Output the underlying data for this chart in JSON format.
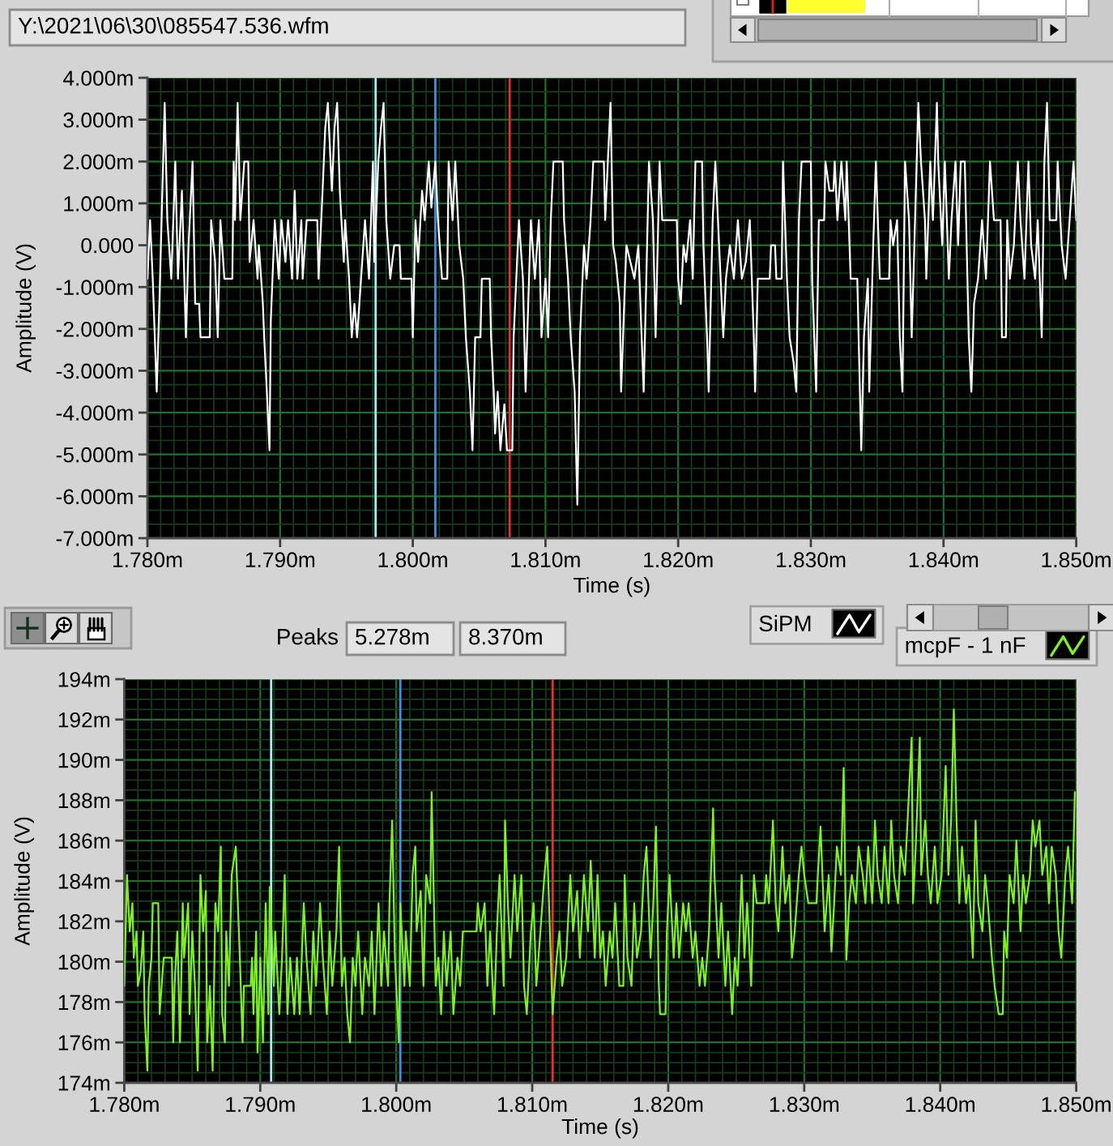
{
  "chart_data": [
    {
      "type": "line",
      "annotations": [
        "Y:\\2021\\06\\30\\085547.536.wfm"
      ],
      "xlabel": "Time (s)",
      "ylabel": "Amplitude (V)",
      "x": [
        1.78,
        1.7802,
        1.7804,
        1.7807,
        1.7809,
        1.7811,
        1.7813,
        1.7815,
        1.7818,
        1.7821,
        1.7823,
        1.7826,
        1.7829,
        1.7831,
        1.7834,
        1.7836,
        1.7839,
        1.784,
        1.7847,
        1.7848,
        1.7851,
        1.7853,
        1.7855,
        1.7858,
        1.7864,
        1.7865,
        1.7866,
        1.7868,
        1.787,
        1.7873,
        1.7876,
        1.7877,
        1.788,
        1.7883,
        1.7884,
        1.7887,
        1.7888,
        1.789,
        1.7892,
        1.7893,
        1.7896,
        1.7899,
        1.7901,
        1.7904,
        1.7906,
        1.7909,
        1.7911,
        1.7913,
        1.7916,
        1.7917,
        1.792,
        1.7928,
        1.7929,
        1.7932,
        1.7934,
        1.7936,
        1.7939,
        1.7941,
        1.7943,
        1.7945,
        1.7948,
        1.7949,
        1.7952,
        1.7954,
        1.7956,
        1.7958,
        1.7961,
        1.7964,
        1.7967,
        1.797,
        1.7971,
        1.7974,
        1.7976,
        1.7978,
        1.798,
        1.7983,
        1.7986,
        1.799,
        1.7991,
        1.7999,
        1.8,
        1.8002,
        1.8004,
        1.8007,
        1.8009,
        1.8012,
        1.8014,
        1.8017,
        1.8019,
        1.8022,
        1.8026,
        1.8027,
        1.803,
        1.8032,
        1.8035,
        1.8038,
        1.804,
        1.8043,
        1.8045,
        1.8047,
        1.8051,
        1.8052,
        1.8058,
        1.8059,
        1.8061,
        1.8062,
        1.8064,
        1.8066,
        1.8069,
        1.8071,
        1.8075,
        1.8076,
        1.8078,
        1.808,
        1.8083,
        1.8085,
        1.8087,
        1.8089,
        1.8092,
        1.8095,
        1.8097,
        1.81,
        1.8102,
        1.8104,
        1.8106,
        1.8113,
        1.8114,
        1.8117,
        1.8119,
        1.8122,
        1.8124,
        1.8126,
        1.8129,
        1.8131,
        1.8134,
        1.8136,
        1.8144,
        1.8145,
        1.8147,
        1.8149,
        1.8151,
        1.8153,
        1.8156,
        1.8157,
        1.816,
        1.8161,
        1.8164,
        1.8167,
        1.817,
        1.8172,
        1.8174,
        1.8176,
        1.8178,
        1.8181,
        1.8183,
        1.8186,
        1.8188,
        1.8199,
        1.82,
        1.8202,
        1.8204,
        1.8206,
        1.8209,
        1.8211,
        1.8213,
        1.8218,
        1.8219,
        1.8222,
        1.8223,
        1.8226,
        1.8228,
        1.823,
        1.8234,
        1.8236,
        1.8239,
        1.8242,
        1.8245,
        1.8248,
        1.8251,
        1.8254,
        1.8257,
        1.8258,
        1.826,
        1.8269,
        1.827,
        1.8273,
        1.8274,
        1.8278,
        1.8279,
        1.8282,
        1.8284,
        1.8287,
        1.8289,
        1.8291,
        1.8293,
        1.83,
        1.8301,
        1.8304,
        1.8306,
        1.831,
        1.8311,
        1.8314,
        1.8317,
        1.8318,
        1.832,
        1.8323,
        1.8326,
        1.8327,
        1.833,
        1.8335,
        1.8336,
        1.8338,
        1.834,
        1.8343,
        1.8344,
        1.8347,
        1.8349,
        1.8352,
        1.8359,
        1.836,
        1.8362,
        1.8365,
        1.8367,
        1.8369,
        1.8371,
        1.8374,
        1.8376,
        1.8378,
        1.8381,
        1.8383,
        1.8386,
        1.8387,
        1.839,
        1.8392,
        1.8395,
        1.8396,
        1.8399,
        1.8401,
        1.8404,
        1.8406,
        1.8409,
        1.8411,
        1.8413,
        1.8416,
        1.8417,
        1.8419,
        1.8421,
        1.8423,
        1.8426,
        1.8429,
        1.8432,
        1.8435,
        1.8438,
        1.8443,
        1.8444,
        1.8447,
        1.8448,
        1.845,
        1.8453,
        1.8456,
        1.8458,
        1.8461,
        1.8464,
        1.8466,
        1.8469,
        1.8471,
        1.8474,
        1.8476,
        1.8478,
        1.848,
        1.8485,
        1.8486,
        1.8489,
        1.8492,
        1.8495,
        1.8498,
        1.85
      ],
      "series": [
        {
          "name": "SiPM",
          "color": "#ffffff",
          "values": [
            -0.8,
            0.6,
            -0.8,
            -3.5,
            -1.4,
            1.0,
            3.4,
            0.6,
            -0.8,
            2.0,
            -0.8,
            1.3,
            -2.2,
            0.0,
            2.0,
            -1.4,
            -1.4,
            -2.2,
            -2.2,
            0.6,
            -0.4,
            -2.2,
            0.6,
            -0.8,
            -0.8,
            2.0,
            0.6,
            3.4,
            0.6,
            2.0,
            2.0,
            -0.4,
            0.6,
            -0.8,
            0.0,
            -1.4,
            -2.2,
            -3.5,
            -4.9,
            -1.8,
            0.6,
            -0.8,
            0.6,
            -0.4,
            0.6,
            -0.8,
            1.3,
            -0.8,
            0.6,
            -0.8,
            0.6,
            0.6,
            -0.8,
            1.3,
            2.8,
            3.4,
            1.3,
            2.8,
            3.4,
            1.3,
            -0.4,
            0.6,
            -0.8,
            -2.2,
            -1.4,
            -2.2,
            -0.8,
            0.6,
            -0.8,
            2.0,
            -0.4,
            2.0,
            2.8,
            3.4,
            0.6,
            -0.8,
            0.0,
            0.0,
            -0.8,
            -0.8,
            -2.2,
            0.6,
            -0.4,
            1.3,
            0.6,
            2.0,
            0.9,
            2.0,
            0.6,
            -0.8,
            -0.8,
            2.0,
            0.6,
            2.0,
            0.0,
            -0.8,
            -2.2,
            -3.5,
            -4.9,
            -2.2,
            -2.2,
            -0.8,
            -0.8,
            -2.2,
            -3.5,
            -4.5,
            -3.5,
            -4.9,
            -3.8,
            -4.9,
            -4.9,
            -2.2,
            -0.8,
            0.6,
            -0.8,
            -3.5,
            -1.4,
            0.6,
            -0.8,
            0.6,
            -2.2,
            -0.8,
            -2.2,
            0.6,
            2.0,
            2.0,
            0.6,
            -0.8,
            -2.2,
            -3.5,
            -6.2,
            -2.2,
            0.0,
            -0.8,
            0.6,
            2.0,
            2.0,
            0.6,
            2.0,
            3.4,
            0.0,
            -0.4,
            -1.4,
            -3.5,
            -0.8,
            0.0,
            -0.4,
            -0.8,
            0.0,
            -1.8,
            -3.5,
            -0.8,
            2.0,
            0.6,
            -2.2,
            2.0,
            0.6,
            0.6,
            -0.8,
            -1.4,
            0.0,
            -0.4,
            0.6,
            -0.8,
            2.0,
            2.0,
            0.0,
            -2.4,
            -3.5,
            0.6,
            2.0,
            0.6,
            -2.2,
            -0.8,
            0.0,
            -0.8,
            0.6,
            -0.8,
            -0.4,
            0.6,
            -2.2,
            -3.5,
            -0.8,
            -0.8,
            0.0,
            0.0,
            -0.8,
            -0.8,
            2.0,
            -0.8,
            -2.2,
            -2.8,
            -3.5,
            0.6,
            2.0,
            2.0,
            -0.8,
            -3.5,
            0.6,
            0.6,
            2.0,
            1.3,
            1.3,
            2.0,
            0.6,
            2.0,
            0.6,
            2.0,
            -0.8,
            -0.8,
            -2.2,
            -4.9,
            -2.2,
            -0.8,
            -3.5,
            0.0,
            2.0,
            -0.8,
            -0.8,
            0.6,
            0.0,
            0.6,
            -2.2,
            -3.5,
            2.0,
            0.6,
            -2.2,
            0.0,
            3.4,
            2.0,
            0.6,
            -0.8,
            2.0,
            0.6,
            3.4,
            2.0,
            0.0,
            2.0,
            -0.8,
            0.6,
            2.0,
            0.0,
            2.0,
            2.0,
            0.6,
            -2.2,
            -3.5,
            -1.4,
            -0.8,
            0.6,
            -0.8,
            2.0,
            0.6,
            0.6,
            -2.2,
            -2.2,
            0.6,
            -0.8,
            0.0,
            2.0,
            0.6,
            -0.8,
            2.0,
            0.0,
            -0.8,
            0.6,
            -2.2,
            2.0,
            3.4,
            0.6,
            0.6,
            2.0,
            0.0,
            -0.8,
            0.6,
            2.0,
            0.6
          ]
        }
      ],
      "xlim": [
        1.78,
        1.85
      ],
      "xticks": [
        {
          "value": 1.78,
          "label": "1.780m"
        },
        {
          "value": 1.781,
          "label": null
        },
        {
          "value": 1.782,
          "label": null
        },
        {
          "value": 1.783,
          "label": null
        },
        {
          "value": 1.784,
          "label": null
        },
        {
          "value": 1.785,
          "label": null
        },
        {
          "value": 1.786,
          "label": null
        },
        {
          "value": 1.787,
          "label": null
        },
        {
          "value": 1.788,
          "label": null
        },
        {
          "value": 1.789,
          "label": null
        },
        {
          "value": 1.79,
          "label": "1.790m"
        },
        {
          "value": 1.791,
          "label": null
        },
        {
          "value": 1.792,
          "label": null
        },
        {
          "value": 1.793,
          "label": null
        },
        {
          "value": 1.794,
          "label": null
        },
        {
          "value": 1.795,
          "label": null
        },
        {
          "value": 1.796,
          "label": null
        },
        {
          "value": 1.797,
          "label": null
        },
        {
          "value": 1.798,
          "label": null
        },
        {
          "value": 1.799,
          "label": null
        },
        {
          "value": 1.8,
          "label": "1.800m"
        },
        {
          "value": 1.801,
          "label": null
        },
        {
          "value": 1.802,
          "label": null
        },
        {
          "value": 1.803,
          "label": null
        },
        {
          "value": 1.804,
          "label": null
        },
        {
          "value": 1.805,
          "label": null
        },
        {
          "value": 1.806,
          "label": null
        },
        {
          "value": 1.807,
          "label": null
        },
        {
          "value": 1.808,
          "label": null
        },
        {
          "value": 1.809,
          "label": null
        },
        {
          "value": 1.81,
          "label": "1.810m"
        },
        {
          "value": 1.811,
          "label": null
        },
        {
          "value": 1.812,
          "label": null
        },
        {
          "value": 1.813,
          "label": null
        },
        {
          "value": 1.814,
          "label": null
        },
        {
          "value": 1.815,
          "label": null
        },
        {
          "value": 1.816,
          "label": null
        },
        {
          "value": 1.817,
          "label": null
        },
        {
          "value": 1.818,
          "label": null
        },
        {
          "value": 1.819,
          "label": null
        },
        {
          "value": 1.82,
          "label": "1.820m"
        },
        {
          "value": 1.821,
          "label": null
        },
        {
          "value": 1.822,
          "label": null
        },
        {
          "value": 1.823,
          "label": null
        },
        {
          "value": 1.824,
          "label": null
        },
        {
          "value": 1.825,
          "label": null
        },
        {
          "value": 1.826,
          "label": null
        },
        {
          "value": 1.827,
          "label": null
        },
        {
          "value": 1.828,
          "label": null
        },
        {
          "value": 1.829,
          "label": null
        },
        {
          "value": 1.83,
          "label": "1.830m"
        },
        {
          "value": 1.831,
          "label": null
        },
        {
          "value": 1.832,
          "label": null
        },
        {
          "value": 1.833,
          "label": null
        },
        {
          "value": 1.834,
          "label": null
        },
        {
          "value": 1.835,
          "label": null
        },
        {
          "value": 1.836,
          "label": null
        },
        {
          "value": 1.837,
          "label": null
        },
        {
          "value": 1.838,
          "label": null
        },
        {
          "value": 1.839,
          "label": null
        },
        {
          "value": 1.84,
          "label": "1.840m"
        },
        {
          "value": 1.841,
          "label": null
        },
        {
          "value": 1.842,
          "label": null
        },
        {
          "value": 1.843,
          "label": null
        },
        {
          "value": 1.844,
          "label": null
        },
        {
          "value": 1.845,
          "label": null
        },
        {
          "value": 1.846,
          "label": null
        },
        {
          "value": 1.847,
          "label": null
        },
        {
          "value": 1.848,
          "label": null
        },
        {
          "value": 1.849,
          "label": null
        },
        {
          "value": 1.85,
          "label": "1.850m"
        }
      ],
      "ylim": [
        -7,
        4
      ],
      "yticks": [
        {
          "value": -7,
          "label": "-7.000m"
        },
        {
          "value": -6.667,
          "label": null
        },
        {
          "value": -6.333,
          "label": null
        },
        {
          "value": -6,
          "label": "-6.000m"
        },
        {
          "value": -5.667,
          "label": null
        },
        {
          "value": -5.333,
          "label": null
        },
        {
          "value": -5,
          "label": "-5.000m"
        },
        {
          "value": -4.667,
          "label": null
        },
        {
          "value": -4.333,
          "label": null
        },
        {
          "value": -4,
          "label": "-4.000m"
        },
        {
          "value": -3.667,
          "label": null
        },
        {
          "value": -3.333,
          "label": null
        },
        {
          "value": -3,
          "label": "-3.000m"
        },
        {
          "value": -2.667,
          "label": null
        },
        {
          "value": -2.333,
          "label": null
        },
        {
          "value": -2,
          "label": "-2.000m"
        },
        {
          "value": -1.667,
          "label": null
        },
        {
          "value": -1.333,
          "label": null
        },
        {
          "value": -1,
          "label": "-1.000m"
        },
        {
          "value": -0.667,
          "label": null
        },
        {
          "value": -0.333,
          "label": null
        },
        {
          "value": 0,
          "label": "0.000"
        },
        {
          "value": 0.333,
          "label": null
        },
        {
          "value": 0.667,
          "label": null
        },
        {
          "value": 1,
          "label": "1.000m"
        },
        {
          "value": 1.333,
          "label": null
        },
        {
          "value": 1.667,
          "label": null
        },
        {
          "value": 2,
          "label": "2.000m"
        },
        {
          "value": 2.333,
          "label": null
        },
        {
          "value": 2.667,
          "label": null
        },
        {
          "value": 3,
          "label": "3.000m"
        },
        {
          "value": 3.333,
          "label": null
        },
        {
          "value": 3.667,
          "label": null
        },
        {
          "value": 4,
          "label": "4.000m"
        }
      ],
      "grid": true,
      "legend": "bottom right",
      "ref_lines": [
        {
          "axis": "x",
          "value": 1.7972,
          "color": "#a8ecf4"
        },
        {
          "axis": "x",
          "value": 1.8017,
          "color": "#3f8fe0"
        },
        {
          "axis": "x",
          "value": 1.8073,
          "color": "#e8302a"
        }
      ]
    },
    {
      "type": "line",
      "annotations": [
        "Peaks",
        "5.278m",
        "8.370m"
      ],
      "xlabel": "Time (s)",
      "ylabel": "Amplitude (V)",
      "x": [
        1.78,
        1.7802,
        1.7804,
        1.7806,
        1.7807,
        1.7809,
        1.781,
        1.7812,
        1.7814,
        1.7815,
        1.7817,
        1.7818,
        1.782,
        1.7821,
        1.7825,
        1.7826,
        1.7829,
        1.7835,
        1.7836,
        1.7837,
        1.7839,
        1.7841,
        1.7843,
        1.7844,
        1.7847,
        1.7848,
        1.785,
        1.7852,
        1.7854,
        1.7856,
        1.7858,
        1.786,
        1.7861,
        1.7863,
        1.7865,
        1.7867,
        1.7869,
        1.7871,
        1.7872,
        1.7874,
        1.7875,
        1.7877,
        1.7879,
        1.7882,
        1.7885,
        1.7887,
        1.7888,
        1.7893,
        1.7894,
        1.7895,
        1.7897,
        1.7898,
        1.79,
        1.7902,
        1.7904,
        1.7906,
        1.7907,
        1.791,
        1.7911,
        1.7914,
        1.7916,
        1.7918,
        1.792,
        1.7922,
        1.7925,
        1.7927,
        1.7929,
        1.7932,
        1.7934,
        1.7937,
        1.7939,
        1.7941,
        1.7944,
        1.7946,
        1.7949,
        1.7951,
        1.7953,
        1.7956,
        1.7958,
        1.796,
        1.7962,
        1.7964,
        1.7966,
        1.7968,
        1.797,
        1.7972,
        1.7975,
        1.7977,
        1.798,
        1.7982,
        1.7984,
        1.7987,
        1.7989,
        1.7991,
        1.7994,
        1.7995,
        1.7997,
        1.7999,
        1.8002,
        1.8003,
        1.8006,
        1.8007,
        1.801,
        1.8012,
        1.8014,
        1.8015,
        1.8018,
        1.802,
        1.8022,
        1.8025,
        1.8026,
        1.8029,
        1.8031,
        1.8033,
        1.8035,
        1.8037,
        1.804,
        1.8042,
        1.8045,
        1.8047,
        1.8049,
        1.8059,
        1.806,
        1.8062,
        1.8065,
        1.8067,
        1.8069,
        1.8072,
        1.8074,
        1.8076,
        1.8079,
        1.808,
        1.8082,
        1.8084,
        1.8087,
        1.8089,
        1.8092,
        1.8094,
        1.8096,
        1.8099,
        1.8101,
        1.8103,
        1.8106,
        1.8109,
        1.8111,
        1.8113,
        1.8115,
        1.8118,
        1.812,
        1.8122,
        1.8125,
        1.8128,
        1.813,
        1.8133,
        1.8135,
        1.8138,
        1.8141,
        1.8143,
        1.8146,
        1.8148,
        1.815,
        1.8152,
        1.8154,
        1.8157,
        1.8159,
        1.8161,
        1.8164,
        1.8167,
        1.8168,
        1.817,
        1.8173,
        1.8175,
        1.8177,
        1.818,
        1.8182,
        1.8184,
        1.8187,
        1.8189,
        1.8191,
        1.8193,
        1.8194,
        1.8198,
        1.8199,
        1.8201,
        1.8204,
        1.8206,
        1.8208,
        1.8211,
        1.8213,
        1.8215,
        1.8218,
        1.822,
        1.8223,
        1.8225,
        1.8227,
        1.823,
        1.8233,
        1.8234,
        1.8237,
        1.8239,
        1.8242,
        1.8244,
        1.8247,
        1.8249,
        1.8251,
        1.8254,
        1.8256,
        1.8258,
        1.8261,
        1.8263,
        1.8265,
        1.8271,
        1.8272,
        1.8274,
        1.8277,
        1.8279,
        1.8281,
        1.8284,
        1.8286,
        1.8289,
        1.8291,
        1.8293,
        1.8296,
        1.8298,
        1.83,
        1.8303,
        1.8309,
        1.831,
        1.8312,
        1.8315,
        1.8318,
        1.832,
        1.8322,
        1.8324,
        1.8327,
        1.8329,
        1.8331,
        1.8333,
        1.8335,
        1.8338,
        1.834,
        1.8343,
        1.8345,
        1.8347,
        1.835,
        1.8352,
        1.8354,
        1.8357,
        1.8359,
        1.8362,
        1.8364,
        1.8366,
        1.8369,
        1.8371,
        1.8374,
        1.8376,
        1.8379,
        1.838,
        1.8382,
        1.8385,
        1.8386,
        1.8389,
        1.8391,
        1.8393,
        1.8396,
        1.8398,
        1.8401,
        1.8404,
        1.8406,
        1.8408,
        1.841,
        1.8412,
        1.8414,
        1.8416,
        1.8419,
        1.8421,
        1.8424,
        1.8426,
        1.8428,
        1.8431,
        1.8433,
        1.8435,
        1.8438,
        1.844,
        1.8443,
        1.8446,
        1.8447,
        1.8449,
        1.8451,
        1.8454,
        1.8456,
        1.8459,
        1.8461,
        1.8463,
        1.8466,
        1.8468,
        1.847,
        1.8473,
        1.8475,
        1.8478,
        1.848,
        1.8482,
        1.8485,
        1.8487,
        1.8489,
        1.8492,
        1.8494,
        1.8497,
        1.8499
      ],
      "series": [
        {
          "name": "mcpF - 1 nF",
          "color": "#7ff21e",
          "values": [
            178.8,
            184.3,
            181.5,
            182.9,
            180.2,
            181.5,
            178.8,
            179.5,
            181.5,
            177.4,
            174.6,
            178.8,
            180.2,
            182.9,
            182.9,
            177.4,
            180.2,
            180.2,
            176.0,
            178.8,
            181.5,
            176.0,
            182.9,
            180.2,
            182.9,
            177.4,
            181.5,
            178.8,
            174.6,
            184.3,
            181.5,
            183.5,
            176.0,
            178.8,
            174.6,
            182.9,
            181.5,
            185.7,
            177.4,
            176.0,
            181.5,
            178.8,
            184.3,
            185.7,
            180.2,
            176.0,
            178.8,
            178.8,
            180.2,
            177.4,
            181.5,
            175.5,
            180.2,
            176.0,
            182.9,
            177.4,
            183.7,
            178.8,
            181.5,
            177.4,
            180.2,
            184.3,
            177.4,
            180.2,
            177.4,
            180.2,
            177.4,
            182.9,
            180.2,
            177.4,
            181.5,
            178.8,
            182.9,
            180.2,
            177.4,
            181.5,
            178.8,
            181.5,
            185.7,
            178.8,
            180.2,
            177.4,
            176.0,
            180.2,
            178.8,
            181.5,
            177.4,
            180.2,
            178.8,
            181.5,
            177.4,
            182.9,
            178.8,
            181.5,
            178.8,
            182.9,
            187.0,
            180.2,
            176.0,
            182.9,
            178.8,
            181.5,
            178.8,
            184.3,
            185.7,
            181.5,
            183.5,
            178.8,
            184.3,
            182.9,
            188.4,
            178.8,
            180.2,
            177.4,
            181.5,
            178.8,
            181.5,
            177.4,
            180.2,
            178.8,
            181.5,
            181.5,
            182.9,
            181.5,
            182.9,
            178.8,
            181.5,
            177.4,
            181.5,
            184.3,
            178.8,
            187.0,
            183.0,
            180.2,
            184.3,
            181.5,
            184.3,
            178.8,
            177.4,
            181.5,
            182.9,
            178.8,
            181.5,
            184.3,
            185.7,
            181.5,
            177.4,
            180.2,
            181.5,
            178.8,
            180.2,
            184.3,
            181.5,
            183.5,
            180.2,
            184.3,
            181.5,
            185.0,
            180.2,
            184.3,
            180.2,
            181.5,
            178.8,
            181.5,
            180.2,
            182.9,
            178.8,
            178.8,
            184.3,
            180.2,
            178.8,
            182.9,
            180.2,
            181.5,
            184.3,
            185.7,
            180.2,
            182.9,
            186.7,
            179.0,
            177.4,
            177.4,
            181.5,
            184.3,
            180.2,
            182.9,
            180.2,
            182.9,
            181.5,
            182.9,
            180.2,
            181.5,
            178.8,
            180.2,
            178.8,
            181.5,
            187.6,
            184.3,
            180.2,
            182.9,
            178.8,
            181.5,
            177.4,
            180.2,
            178.8,
            184.3,
            180.2,
            182.9,
            178.8,
            184.3,
            182.9,
            182.9,
            184.3,
            182.9,
            187.0,
            182.9,
            181.5,
            185.7,
            182.9,
            184.3,
            180.2,
            181.5,
            184.3,
            185.7,
            184.3,
            182.9,
            182.9,
            184.3,
            186.7,
            181.5,
            184.3,
            180.5,
            182.9,
            185.7,
            184.3,
            189.6,
            180.1,
            182.9,
            184.3,
            182.9,
            185.7,
            184.3,
            182.9,
            185.7,
            182.9,
            187.0,
            184.3,
            182.9,
            185.7,
            182.9,
            187.0,
            184.3,
            182.9,
            185.7,
            184.3,
            187.0,
            191.1,
            182.9,
            185.7,
            191.1,
            184.3,
            187.0,
            184.3,
            182.9,
            185.7,
            182.9,
            184.3,
            189.7,
            184.3,
            187.0,
            192.5,
            187.0,
            182.9,
            185.7,
            182.9,
            184.3,
            180.2,
            187.0,
            182.9,
            181.5,
            184.3,
            182.9,
            180.2,
            178.8,
            177.4,
            177.4,
            181.5,
            180.2,
            184.3,
            182.9,
            186.0,
            181.5,
            184.3,
            182.9,
            184.3,
            187.0,
            185.7,
            187.0,
            184.3,
            185.7,
            182.9,
            185.7,
            184.3,
            181.5,
            180.2,
            184.3,
            185.7,
            182.9,
            188.4
          ]
        }
      ],
      "xlim": [
        1.78,
        1.85
      ],
      "xticks": [
        {
          "value": 1.78,
          "label": "1.780m"
        },
        {
          "value": 1.781,
          "label": null
        },
        {
          "value": 1.782,
          "label": null
        },
        {
          "value": 1.783,
          "label": null
        },
        {
          "value": 1.784,
          "label": null
        },
        {
          "value": 1.785,
          "label": null
        },
        {
          "value": 1.786,
          "label": null
        },
        {
          "value": 1.787,
          "label": null
        },
        {
          "value": 1.788,
          "label": null
        },
        {
          "value": 1.789,
          "label": null
        },
        {
          "value": 1.79,
          "label": "1.790m"
        },
        {
          "value": 1.791,
          "label": null
        },
        {
          "value": 1.792,
          "label": null
        },
        {
          "value": 1.793,
          "label": null
        },
        {
          "value": 1.794,
          "label": null
        },
        {
          "value": 1.795,
          "label": null
        },
        {
          "value": 1.796,
          "label": null
        },
        {
          "value": 1.797,
          "label": null
        },
        {
          "value": 1.798,
          "label": null
        },
        {
          "value": 1.799,
          "label": null
        },
        {
          "value": 1.8,
          "label": "1.800m"
        },
        {
          "value": 1.801,
          "label": null
        },
        {
          "value": 1.802,
          "label": null
        },
        {
          "value": 1.803,
          "label": null
        },
        {
          "value": 1.804,
          "label": null
        },
        {
          "value": 1.805,
          "label": null
        },
        {
          "value": 1.806,
          "label": null
        },
        {
          "value": 1.807,
          "label": null
        },
        {
          "value": 1.808,
          "label": null
        },
        {
          "value": 1.809,
          "label": null
        },
        {
          "value": 1.81,
          "label": "1.810m"
        },
        {
          "value": 1.811,
          "label": null
        },
        {
          "value": 1.812,
          "label": null
        },
        {
          "value": 1.813,
          "label": null
        },
        {
          "value": 1.814,
          "label": null
        },
        {
          "value": 1.815,
          "label": null
        },
        {
          "value": 1.816,
          "label": null
        },
        {
          "value": 1.817,
          "label": null
        },
        {
          "value": 1.818,
          "label": null
        },
        {
          "value": 1.819,
          "label": null
        },
        {
          "value": 1.82,
          "label": "1.820m"
        },
        {
          "value": 1.821,
          "label": null
        },
        {
          "value": 1.822,
          "label": null
        },
        {
          "value": 1.823,
          "label": null
        },
        {
          "value": 1.824,
          "label": null
        },
        {
          "value": 1.825,
          "label": null
        },
        {
          "value": 1.826,
          "label": null
        },
        {
          "value": 1.827,
          "label": null
        },
        {
          "value": 1.828,
          "label": null
        },
        {
          "value": 1.829,
          "label": null
        },
        {
          "value": 1.83,
          "label": "1.830m"
        },
        {
          "value": 1.831,
          "label": null
        },
        {
          "value": 1.832,
          "label": null
        },
        {
          "value": 1.833,
          "label": null
        },
        {
          "value": 1.834,
          "label": null
        },
        {
          "value": 1.835,
          "label": null
        },
        {
          "value": 1.836,
          "label": null
        },
        {
          "value": 1.837,
          "label": null
        },
        {
          "value": 1.838,
          "label": null
        },
        {
          "value": 1.839,
          "label": null
        },
        {
          "value": 1.84,
          "label": "1.840m"
        },
        {
          "value": 1.841,
          "label": null
        },
        {
          "value": 1.842,
          "label": null
        },
        {
          "value": 1.843,
          "label": null
        },
        {
          "value": 1.844,
          "label": null
        },
        {
          "value": 1.845,
          "label": null
        },
        {
          "value": 1.846,
          "label": null
        },
        {
          "value": 1.847,
          "label": null
        },
        {
          "value": 1.848,
          "label": null
        },
        {
          "value": 1.849,
          "label": null
        },
        {
          "value": 1.85,
          "label": "1.850m"
        }
      ],
      "ylim": [
        174,
        194
      ],
      "yticks": [
        {
          "value": 174,
          "label": "174m"
        },
        {
          "value": 174.5,
          "label": null
        },
        {
          "value": 175,
          "label": null
        },
        {
          "value": 175.5,
          "label": null
        },
        {
          "value": 176,
          "label": "176m"
        },
        {
          "value": 176.5,
          "label": null
        },
        {
          "value": 177,
          "label": null
        },
        {
          "value": 177.5,
          "label": null
        },
        {
          "value": 178,
          "label": "178m"
        },
        {
          "value": 178.5,
          "label": null
        },
        {
          "value": 179,
          "label": null
        },
        {
          "value": 179.5,
          "label": null
        },
        {
          "value": 180,
          "label": "180m"
        },
        {
          "value": 180.5,
          "label": null
        },
        {
          "value": 181,
          "label": null
        },
        {
          "value": 181.5,
          "label": null
        },
        {
          "value": 182,
          "label": "182m"
        },
        {
          "value": 182.5,
          "label": null
        },
        {
          "value": 183,
          "label": null
        },
        {
          "value": 183.5,
          "label": null
        },
        {
          "value": 184,
          "label": "184m"
        },
        {
          "value": 184.5,
          "label": null
        },
        {
          "value": 185,
          "label": null
        },
        {
          "value": 185.5,
          "label": null
        },
        {
          "value": 186,
          "label": "186m"
        },
        {
          "value": 186.5,
          "label": null
        },
        {
          "value": 187,
          "label": null
        },
        {
          "value": 187.5,
          "label": null
        },
        {
          "value": 188,
          "label": "188m"
        },
        {
          "value": 188.5,
          "label": null
        },
        {
          "value": 189,
          "label": null
        },
        {
          "value": 189.5,
          "label": null
        },
        {
          "value": 190,
          "label": "190m"
        },
        {
          "value": 190.5,
          "label": null
        },
        {
          "value": 191,
          "label": null
        },
        {
          "value": 191.5,
          "label": null
        },
        {
          "value": 192,
          "label": "192m"
        },
        {
          "value": 192.5,
          "label": null
        },
        {
          "value": 193,
          "label": null
        },
        {
          "value": 193.5,
          "label": null
        },
        {
          "value": 194,
          "label": "194m"
        }
      ],
      "grid": true,
      "legend": "top right",
      "ref_lines": [
        {
          "axis": "x",
          "value": 1.7908,
          "color": "#a8ecf4"
        },
        {
          "axis": "x",
          "value": 1.8003,
          "color": "#3f8fe0"
        },
        {
          "axis": "x",
          "value": 1.8115,
          "color": "#e8302a"
        }
      ]
    }
  ]
}
